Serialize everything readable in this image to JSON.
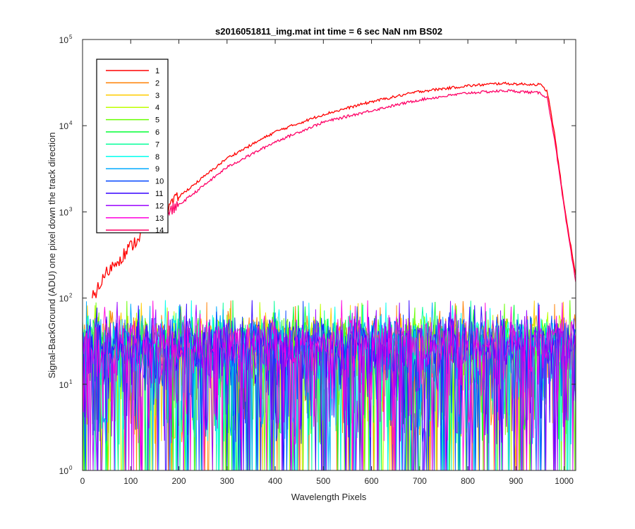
{
  "chart_data": {
    "type": "line",
    "title": "s2016051811_img.mat int time = 6 sec  NaN nm BS02",
    "xlabel": "Wavelength Pixels",
    "ylabel": "Signal-BackGround (ADU) one pixel down the track direction",
    "xlim": [
      0,
      1024
    ],
    "ylim": [
      1,
      100000
    ],
    "yscale": "log",
    "grid": false,
    "legend_position": "top-left",
    "x_ticks": [
      0,
      100,
      200,
      300,
      400,
      500,
      600,
      700,
      800,
      900,
      1000
    ],
    "y_ticks": [
      {
        "value": 1,
        "base": "10",
        "exp": "0"
      },
      {
        "value": 10,
        "base": "10",
        "exp": "1"
      },
      {
        "value": 100,
        "base": "10",
        "exp": "2"
      },
      {
        "value": 1000,
        "base": "10",
        "exp": "3"
      },
      {
        "value": 10000,
        "base": "10",
        "exp": "4"
      },
      {
        "value": 100000,
        "base": "10",
        "exp": "5"
      }
    ],
    "series": [
      {
        "name": "1",
        "color": "#ff0000",
        "kind": "signal",
        "points": [
          [
            20,
            100
          ],
          [
            50,
            200
          ],
          [
            100,
            400
          ],
          [
            150,
            800
          ],
          [
            200,
            1500
          ],
          [
            300,
            4200
          ],
          [
            400,
            8500
          ],
          [
            500,
            13500
          ],
          [
            600,
            19000
          ],
          [
            700,
            25000
          ],
          [
            800,
            29000
          ],
          [
            870,
            31000
          ],
          [
            900,
            30500
          ],
          [
            950,
            30000
          ],
          [
            965,
            25000
          ],
          [
            980,
            8000
          ],
          [
            1000,
            1200
          ],
          [
            1024,
            180
          ]
        ]
      },
      {
        "name": "2",
        "color": "#ff7f00",
        "kind": "noise"
      },
      {
        "name": "3",
        "color": "#ffcc00",
        "kind": "noise"
      },
      {
        "name": "4",
        "color": "#bfff00",
        "kind": "noise"
      },
      {
        "name": "5",
        "color": "#66ff00",
        "kind": "noise"
      },
      {
        "name": "6",
        "color": "#00ff33",
        "kind": "noise"
      },
      {
        "name": "7",
        "color": "#00ff99",
        "kind": "noise"
      },
      {
        "name": "8",
        "color": "#00ffee",
        "kind": "noise"
      },
      {
        "name": "9",
        "color": "#00aaff",
        "kind": "noise"
      },
      {
        "name": "10",
        "color": "#0044ff",
        "kind": "noise"
      },
      {
        "name": "11",
        "color": "#3300ff",
        "kind": "noise"
      },
      {
        "name": "12",
        "color": "#9900ff",
        "kind": "noise"
      },
      {
        "name": "13",
        "color": "#ff00dd",
        "kind": "noise"
      },
      {
        "name": "14",
        "color": "#ff0066",
        "kind": "signal",
        "points": [
          [
            150,
            800
          ],
          [
            200,
            1200
          ],
          [
            300,
            3300
          ],
          [
            400,
            6500
          ],
          [
            500,
            11000
          ],
          [
            600,
            15000
          ],
          [
            700,
            20000
          ],
          [
            800,
            24000
          ],
          [
            880,
            25500
          ],
          [
            950,
            24000
          ],
          [
            965,
            21000
          ],
          [
            980,
            7000
          ],
          [
            1000,
            1100
          ],
          [
            1024,
            150
          ]
        ]
      }
    ],
    "noise_band": {
      "x_range": [
        0,
        1024
      ],
      "typical_peak": 40,
      "max_peak": 95,
      "floor": 1
    }
  }
}
